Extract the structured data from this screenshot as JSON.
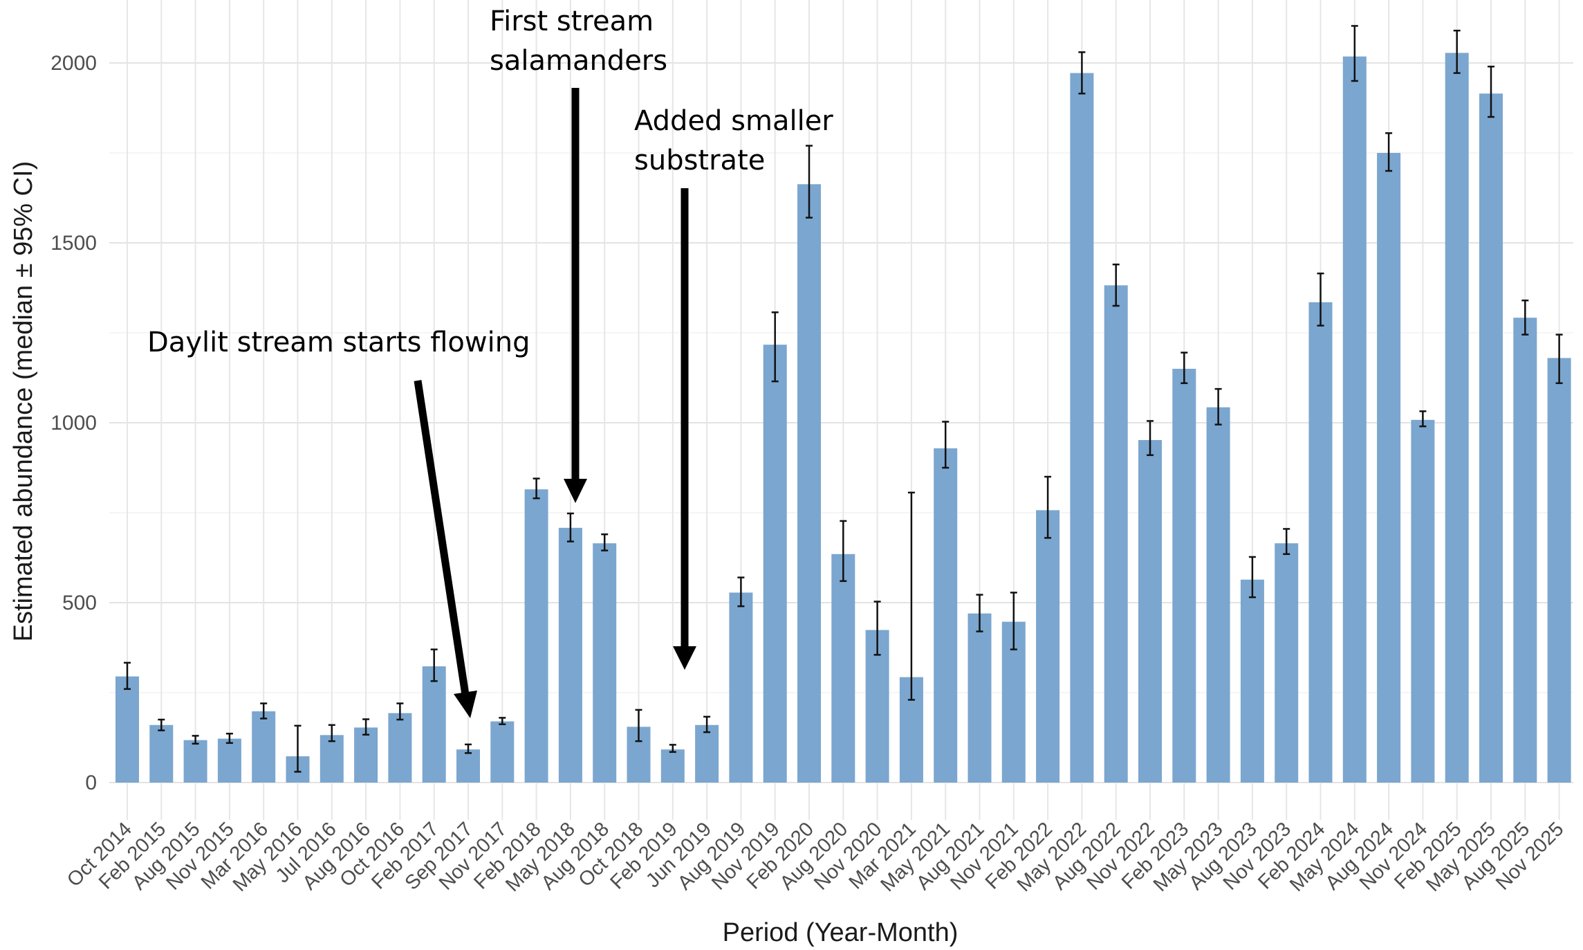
{
  "chart_data": {
    "type": "bar",
    "xlabel": "Period (Year-Month)",
    "ylabel": "Estimated abundance (median ± 95% CI)",
    "ylim": [
      0,
      2100
    ],
    "yticks": [
      0,
      500,
      1000,
      1500,
      2000
    ],
    "grid": true,
    "bar_color": "#7ba6cf",
    "categories": [
      "Oct 2014",
      "Feb 2015",
      "Aug 2015",
      "Nov 2015",
      "Mar 2016",
      "May 2016",
      "Jul 2016",
      "Aug 2016",
      "Oct 2016",
      "Feb 2017",
      "Sep 2017",
      "Nov 2017",
      "Feb 2018",
      "May 2018",
      "Aug 2018",
      "Oct 2018",
      "Feb 2019",
      "Jun 2019",
      "Aug 2019",
      "Nov 2019",
      "Feb 2020",
      "Aug 2020",
      "Nov 2020",
      "Mar 2021",
      "May 2021",
      "Aug 2021",
      "Nov 2021",
      "Feb 2022",
      "May 2022",
      "Aug 2022",
      "Nov 2022",
      "Feb 2023",
      "May 2023",
      "Aug 2023",
      "Nov 2023",
      "Feb 2024",
      "May 2024",
      "Aug 2024",
      "Nov 2024",
      "Feb 2025",
      "May 2025",
      "Aug 2025",
      "Nov 2025"
    ],
    "values": [
      295,
      160,
      118,
      122,
      198,
      73,
      132,
      153,
      193,
      323,
      92,
      170,
      815,
      708,
      665,
      155,
      92,
      160,
      528,
      1217,
      1663,
      635,
      424,
      293,
      929,
      470,
      447,
      757,
      1972,
      1382,
      952,
      1150,
      1043,
      564,
      665,
      1335,
      2018,
      1750,
      1008,
      2028,
      1915,
      1292,
      1180
    ],
    "ci_lower": [
      260,
      145,
      108,
      110,
      178,
      30,
      115,
      133,
      175,
      282,
      82,
      162,
      790,
      670,
      645,
      115,
      85,
      140,
      490,
      1115,
      1570,
      560,
      355,
      230,
      875,
      420,
      370,
      680,
      1915,
      1325,
      910,
      1110,
      995,
      515,
      635,
      1270,
      1950,
      1700,
      990,
      1972,
      1850,
      1245,
      1110
    ],
    "ci_upper": [
      333,
      175,
      130,
      136,
      220,
      158,
      160,
      176,
      220,
      370,
      106,
      180,
      845,
      748,
      690,
      202,
      105,
      183,
      570,
      1307,
      1770,
      727,
      503,
      806,
      1003,
      522,
      528,
      850,
      2030,
      1440,
      1005,
      1195,
      1094,
      627,
      705,
      1415,
      2103,
      1805,
      1032,
      2090,
      1990,
      1340,
      1245
    ],
    "annotations": [
      {
        "lines": [
          "First stream",
          "salamanders"
        ],
        "points_to": "May 2018"
      },
      {
        "lines": [
          "Added smaller",
          "substrate"
        ],
        "points_to": "Feb 2019"
      },
      {
        "lines": [
          "Daylit stream starts flowing"
        ],
        "points_to": "Sep 2017"
      }
    ]
  }
}
